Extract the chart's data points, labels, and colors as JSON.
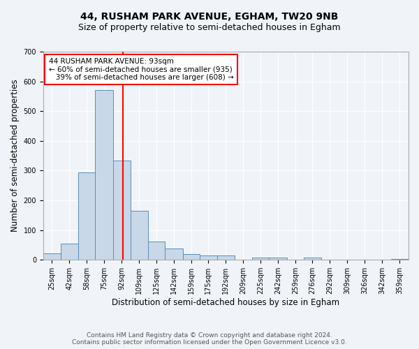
{
  "title": "44, RUSHAM PARK AVENUE, EGHAM, TW20 9NB",
  "subtitle": "Size of property relative to semi-detached houses in Egham",
  "xlabel": "Distribution of semi-detached houses by size in Egham",
  "ylabel": "Number of semi-detached properties",
  "bin_labels": [
    "25sqm",
    "42sqm",
    "58sqm",
    "75sqm",
    "92sqm",
    "109sqm",
    "125sqm",
    "142sqm",
    "159sqm",
    "175sqm",
    "192sqm",
    "209sqm",
    "225sqm",
    "242sqm",
    "259sqm",
    "276sqm",
    "292sqm",
    "309sqm",
    "326sqm",
    "342sqm",
    "359sqm"
  ],
  "bin_edges": [
    16.5,
    33.5,
    50,
    66.5,
    83.5,
    100.5,
    117,
    133.5,
    150.5,
    167,
    183.5,
    200.5,
    217,
    233.5,
    250.5,
    267,
    283.5,
    300.5,
    317,
    333.5,
    350.5,
    367.5
  ],
  "values": [
    22,
    55,
    295,
    570,
    335,
    165,
    62,
    37,
    20,
    15,
    15,
    0,
    7,
    8,
    0,
    7,
    0,
    0,
    0,
    0,
    4
  ],
  "bar_color": "#c8d8e8",
  "bar_edge_color": "#5b8db8",
  "vline_x": 93,
  "vline_color": "red",
  "annotation_line1": "44 RUSHAM PARK AVENUE: 93sqm",
  "annotation_line2": "← 60% of semi-detached houses are smaller (935)",
  "annotation_line3": "   39% of semi-detached houses are larger (608) →",
  "annotation_box_color": "white",
  "annotation_box_edge_color": "red",
  "ylim": [
    0,
    700
  ],
  "yticks": [
    0,
    100,
    200,
    300,
    400,
    500,
    600,
    700
  ],
  "footer1": "Contains HM Land Registry data © Crown copyright and database right 2024.",
  "footer2": "Contains public sector information licensed under the Open Government Licence v3.0.",
  "background_color": "#f0f4f8",
  "grid_color": "#ffffff",
  "title_fontsize": 10,
  "subtitle_fontsize": 9,
  "axis_label_fontsize": 8.5,
  "tick_fontsize": 7,
  "annotation_fontsize": 7.5,
  "footer_fontsize": 6.5
}
